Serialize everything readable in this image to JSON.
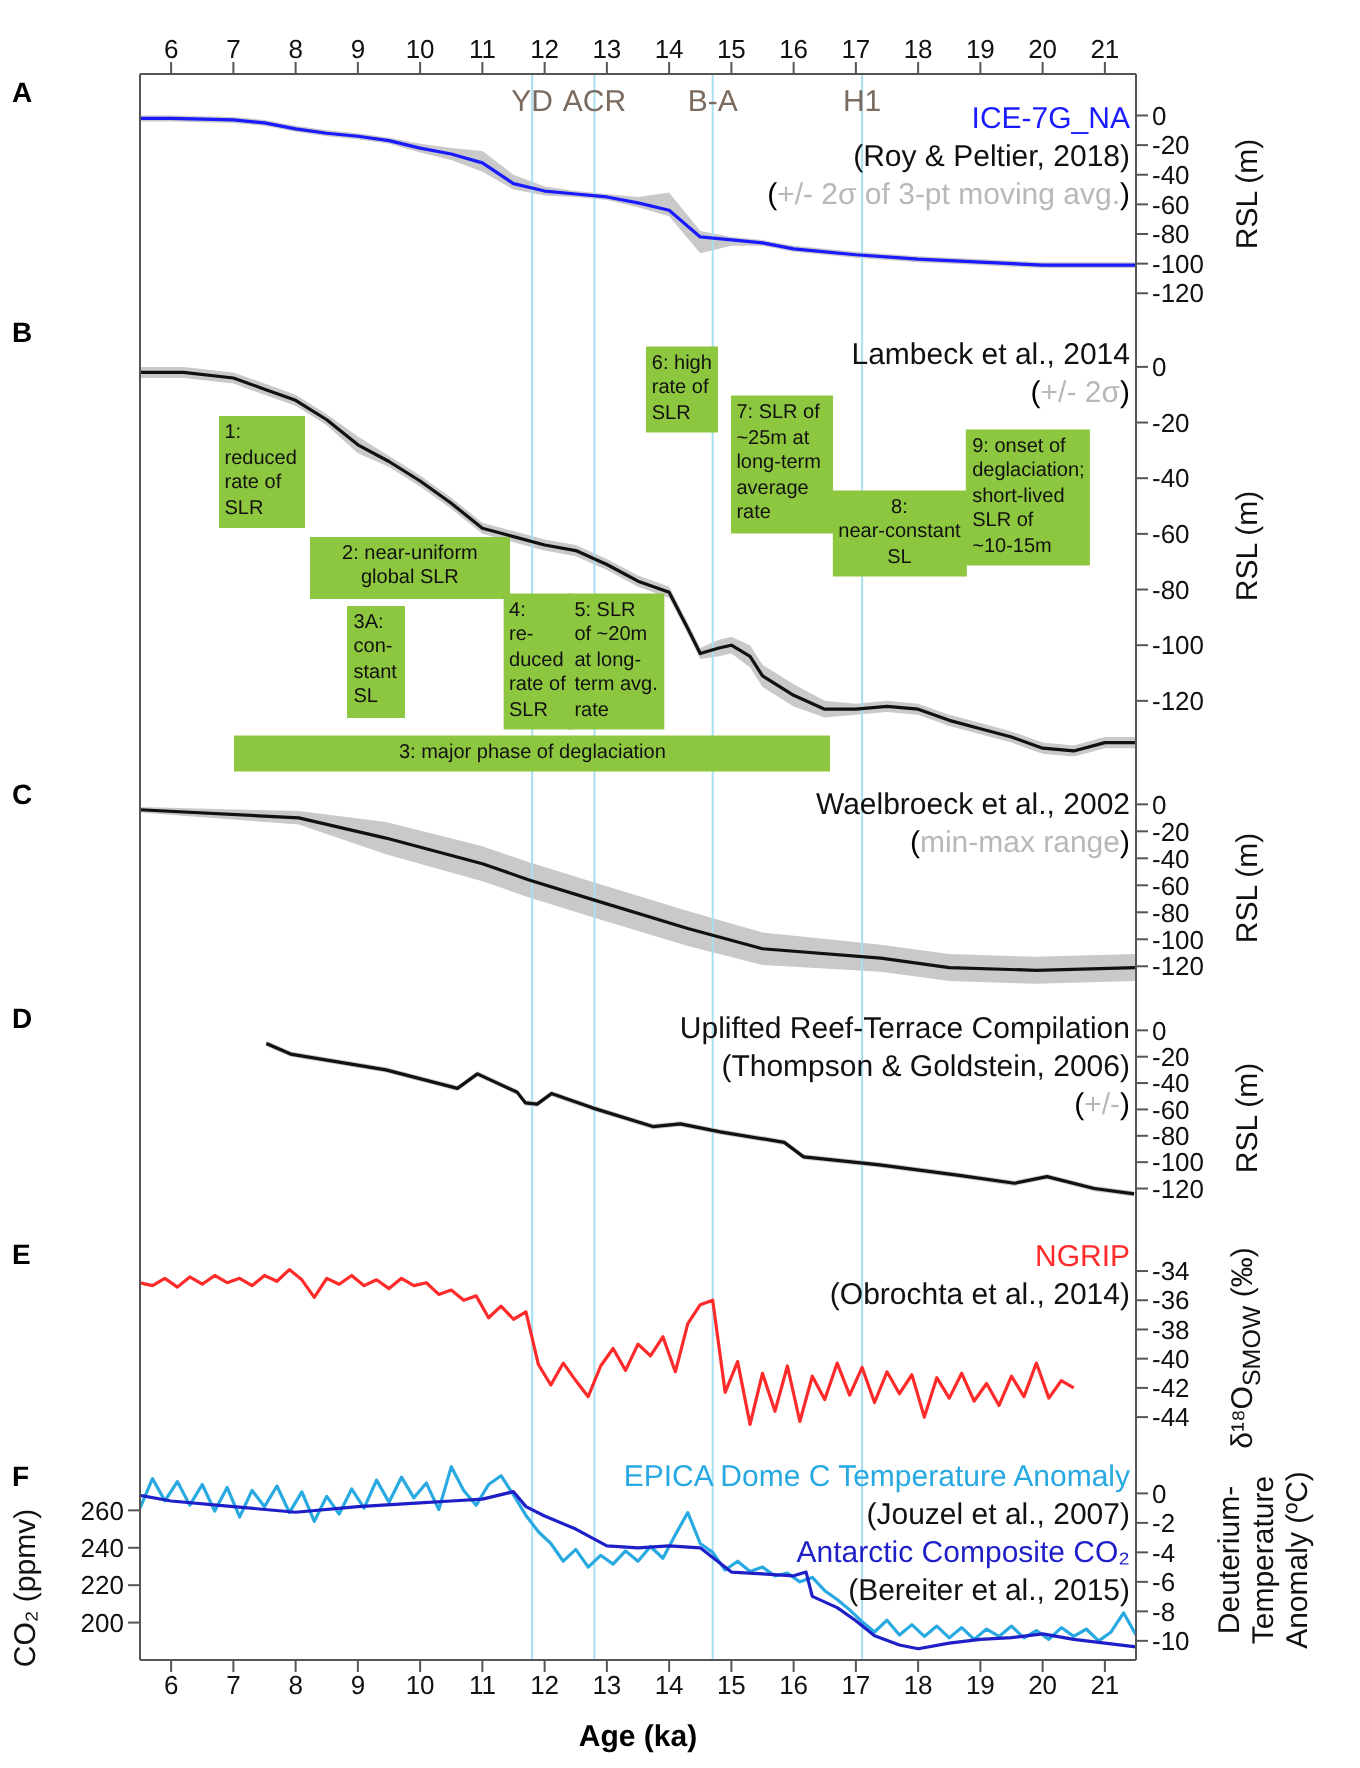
{
  "chart_data": [
    {
      "type": "line",
      "title": "A",
      "ylabel": "RSL (m)",
      "xlim": [
        5.5,
        21.5
      ],
      "x2lim": [
        5.5,
        21.5
      ],
      "x2ticks": [
        6,
        7,
        8,
        9,
        10,
        11,
        12,
        13,
        14,
        15,
        16,
        17,
        18,
        19,
        20,
        21
      ],
      "tick_labels": "y",
      "ylim": [
        -134,
        28
      ],
      "yticks": [
        0,
        -20,
        -40,
        -60,
        -80,
        -100,
        -120
      ],
      "x": [
        5.5,
        6,
        7,
        7.5,
        8,
        8.5,
        9,
        9.5,
        10,
        10.5,
        11,
        11.5,
        12,
        12.5,
        13,
        13.5,
        14,
        14.5,
        15,
        15.5,
        16,
        17,
        18,
        19,
        20,
        21.5
      ],
      "series": [
        {
          "name": "ICE-7G_NA",
          "color": "#1a1aff",
          "values": [
            -2,
            -2,
            -3,
            -5,
            -9,
            -12,
            -14,
            -17,
            -22,
            -26,
            -32,
            -46,
            -51,
            -53,
            -55,
            -59,
            -64,
            -82,
            -84,
            -86,
            -90,
            -94,
            -97,
            -99,
            -101,
            -101
          ],
          "upper": [
            0,
            0,
            -1,
            -3,
            -7,
            -10,
            -12,
            -15,
            -19,
            -22,
            -24,
            -40,
            -48,
            -51,
            -53,
            -55,
            -52,
            -78,
            -82,
            -84,
            -88,
            -92,
            -95,
            -97,
            -99,
            -99
          ],
          "lower": [
            -4,
            -4,
            -5,
            -7,
            -11,
            -14,
            -16,
            -19,
            -25,
            -30,
            -38,
            -50,
            -54,
            -55,
            -57,
            -62,
            -68,
            -93,
            -88,
            -88,
            -92,
            -96,
            -99,
            -101,
            -103,
            -103
          ]
        }
      ],
      "annotations": [
        "(Roy & Peltier, 2018)",
        "(+/- 2σ of 3-pt moving avg.)"
      ],
      "ref_lines": [
        {
          "axis": "x",
          "value": 11.8,
          "label": "YD",
          "color": "#a8dff2"
        },
        {
          "axis": "x",
          "value": 12.8,
          "label": "ACR",
          "color": "#a8dff2"
        },
        {
          "axis": "x",
          "value": 14.7,
          "label": "B-A",
          "color": "#a8dff2"
        },
        {
          "axis": "x",
          "value": 17.1,
          "label": "H1",
          "color": "#a8dff2"
        }
      ]
    },
    {
      "type": "line",
      "title": "B",
      "ylabel": "RSL (m)",
      "xlim": [
        5.5,
        21.5
      ],
      "tick_labels": "y",
      "ylim": [
        -147,
        19
      ],
      "yticks": [
        0,
        -20,
        -40,
        -60,
        -80,
        -100,
        -120
      ],
      "x": [
        5.5,
        6.2,
        7,
        7.5,
        8,
        8.5,
        9,
        9.5,
        10,
        10.5,
        11,
        11.5,
        12,
        12.5,
        13,
        13.5,
        14,
        14.3,
        14.5,
        14.8,
        15,
        15.3,
        15.5,
        16,
        16.5,
        17,
        17.5,
        18,
        18.5,
        19,
        19.5,
        20,
        20.5,
        21,
        21.5
      ],
      "series": [
        {
          "name": "Lambeck et al., 2014",
          "color": "#111111",
          "values": [
            -2,
            -2,
            -4,
            -8,
            -12,
            -19,
            -28,
            -34,
            -41,
            -49,
            -58,
            -61,
            -64,
            -66,
            -71,
            -77,
            -81,
            -94,
            -103,
            -101,
            -100,
            -104,
            -111,
            -118,
            -123,
            -123,
            -122,
            -123,
            -127,
            -130,
            -133,
            -137,
            -138,
            -135,
            -135
          ],
          "upper": [
            0,
            0,
            -2,
            -6,
            -10,
            -17,
            -25,
            -32,
            -39,
            -47,
            -56,
            -59,
            -62,
            -64,
            -69,
            -75,
            -79,
            -92,
            -101,
            -98,
            -97,
            -100,
            -107,
            -114,
            -120,
            -121,
            -120,
            -121,
            -125,
            -128,
            -131,
            -135,
            -136,
            -133,
            -133
          ],
          "lower": [
            -4,
            -4,
            -6,
            -10,
            -14,
            -21,
            -31,
            -36,
            -43,
            -51,
            -60,
            -63,
            -66,
            -68,
            -73,
            -79,
            -83,
            -96,
            -105,
            -104,
            -103,
            -108,
            -115,
            -122,
            -126,
            -125,
            -124,
            -125,
            -129,
            -132,
            -135,
            -139,
            -140,
            -137,
            -137
          ]
        }
      ],
      "annotations": [
        "(+/- 2σ)",
        "1:\nreduced\nrate of\nSLR",
        "2: near-uniform\nglobal SLR",
        "3A:\ncon-\nstant\nSL",
        "3: major phase of deglaciation",
        "4:\nre-\nduced\nrate of\nSLR",
        "5: SLR\nof ~20m\nat long-\nterm avg.\nrate",
        "6: high\nrate of\nSLR",
        "7: SLR of\n~25m at\nlong-term\naverage\nrate",
        "8:\nnear-constant\nSL",
        "9: onset of\ndeglaciation;\nshort-lived\nSLR of\n~10-15m"
      ],
      "ref_lines": [
        {
          "axis": "x",
          "value": 11.8,
          "color": "#a8dff2"
        },
        {
          "axis": "x",
          "value": 12.8,
          "color": "#a8dff2"
        },
        {
          "axis": "x",
          "value": 14.7,
          "color": "#a8dff2"
        },
        {
          "axis": "x",
          "value": 17.1,
          "color": "#a8dff2"
        }
      ]
    },
    {
      "type": "line",
      "title": "C",
      "ylabel": "RSL (m)",
      "xlim": [
        5.5,
        21.5
      ],
      "tick_labels": "y",
      "ylim": [
        -145,
        21
      ],
      "yticks": [
        0,
        -20,
        -40,
        -60,
        -80,
        -100,
        -120
      ],
      "x": [
        5.5,
        8.05,
        9.45,
        11,
        11.75,
        12.8,
        14.3,
        15.5,
        17.4,
        18.5,
        19.9,
        21.5
      ],
      "series": [
        {
          "name": "Waelbroeck et al., 2002",
          "color": "#111111",
          "values": [
            -4,
            -10,
            -25,
            -44,
            -56,
            -71,
            -92,
            -107,
            -114,
            -121,
            -123,
            -121
          ],
          "upper": [
            -2,
            -5,
            -13,
            -31,
            -43,
            -58,
            -79,
            -95,
            -104,
            -111,
            -113,
            -111
          ],
          "lower": [
            -6,
            -15,
            -37,
            -57,
            -69,
            -84,
            -105,
            -119,
            -124,
            -131,
            -133,
            -131
          ]
        }
      ],
      "annotations": [
        "(min-max range)"
      ],
      "ref_lines": [
        {
          "axis": "x",
          "value": 11.8,
          "color": "#a8dff2"
        },
        {
          "axis": "x",
          "value": 12.8,
          "color": "#a8dff2"
        },
        {
          "axis": "x",
          "value": 14.7,
          "color": "#a8dff2"
        },
        {
          "axis": "x",
          "value": 17.1,
          "color": "#a8dff2"
        }
      ]
    },
    {
      "type": "line",
      "title": "D",
      "ylabel": "RSL (m)",
      "xlim": [
        5.5,
        21.5
      ],
      "tick_labels": "y",
      "ylim": [
        -156,
        23
      ],
      "yticks": [
        0,
        -20,
        -40,
        -60,
        -80,
        -100,
        -120
      ],
      "x": [
        7.53,
        7.92,
        9.45,
        10.6,
        10.92,
        11.56,
        11.69,
        11.88,
        12.11,
        12.78,
        13.74,
        14.18,
        14.82,
        15.85,
        16.16,
        17.38,
        18.66,
        19.55,
        20.07,
        20.83,
        21.47
      ],
      "series": [
        {
          "name": "Uplifted Reef-Terrace Compilation",
          "color": "#111111",
          "values": [
            -10,
            -18,
            -30,
            -44,
            -33,
            -47,
            -55,
            -56,
            -48,
            -59,
            -73,
            -71,
            -77,
            -85,
            -96,
            -102,
            -110,
            -116,
            -111,
            -120,
            -124
          ],
          "upper": [
            -8,
            -16,
            -28,
            -42,
            -31,
            -45,
            -53,
            -54,
            -46,
            -57,
            -71,
            -69,
            -75,
            -83,
            -94,
            -100,
            -108,
            -114,
            -109,
            -118,
            -122
          ],
          "lower": [
            -12,
            -20,
            -32,
            -46,
            -35,
            -49,
            -57,
            -58,
            -50,
            -61,
            -75,
            -73,
            -79,
            -87,
            -98,
            -104,
            -112,
            -118,
            -113,
            -122,
            -126
          ]
        }
      ],
      "annotations": [
        "(Thompson & Goldstein, 2006)",
        "(+/-)"
      ],
      "ref_lines": [
        {
          "axis": "x",
          "value": 11.8,
          "color": "#a8dff2"
        },
        {
          "axis": "x",
          "value": 12.8,
          "color": "#a8dff2"
        },
        {
          "axis": "x",
          "value": 14.7,
          "color": "#a8dff2"
        },
        {
          "axis": "x",
          "value": 17.1,
          "color": "#a8dff2"
        }
      ]
    },
    {
      "type": "line",
      "title": "E",
      "ylabel": "δ¹⁸O$_{SMOW}$ (‰)",
      "xlim": [
        5.5,
        21.5
      ],
      "tick_labels": "y",
      "ylim": [
        -46.8,
        -31.6
      ],
      "yticks": [
        -44,
        -42,
        -40,
        -38,
        -36,
        -34
      ],
      "x": [
        5.5,
        5.7,
        5.9,
        6.1,
        6.3,
        6.5,
        6.7,
        6.9,
        7.1,
        7.3,
        7.5,
        7.7,
        7.9,
        8.1,
        8.3,
        8.5,
        8.7,
        8.9,
        9.1,
        9.3,
        9.5,
        9.7,
        9.9,
        10.1,
        10.3,
        10.5,
        10.7,
        10.9,
        11.1,
        11.3,
        11.5,
        11.7,
        11.9,
        12.1,
        12.3,
        12.5,
        12.7,
        12.9,
        13.1,
        13.3,
        13.5,
        13.7,
        13.9,
        14.1,
        14.3,
        14.5,
        14.7,
        14.9,
        15.1,
        15.3,
        15.5,
        15.7,
        15.9,
        16.1,
        16.3,
        16.5,
        16.7,
        16.9,
        17.1,
        17.3,
        17.5,
        17.7,
        17.9,
        18.1,
        18.3,
        18.5,
        18.7,
        18.9,
        19.1,
        19.3,
        19.5,
        19.7,
        19.9,
        20.1,
        20.3,
        20.5
      ],
      "series": [
        {
          "name": "NGRIP",
          "color": "#ff2a2a",
          "values": [
            -34.8,
            -35.0,
            -34.5,
            -35.1,
            -34.4,
            -34.9,
            -34.3,
            -34.8,
            -34.5,
            -35.0,
            -34.3,
            -34.7,
            -33.9,
            -34.6,
            -35.8,
            -34.5,
            -34.9,
            -34.3,
            -35.0,
            -34.6,
            -35.2,
            -34.5,
            -35.0,
            -34.8,
            -35.6,
            -35.3,
            -36.0,
            -35.7,
            -37.2,
            -36.4,
            -37.3,
            -36.8,
            -40.4,
            -41.8,
            -40.3,
            -41.5,
            -42.6,
            -40.5,
            -39.3,
            -40.8,
            -39.0,
            -39.8,
            -38.5,
            -40.9,
            -37.6,
            -36.3,
            -36.0,
            -42.3,
            -40.2,
            -44.5,
            -41.0,
            -43.6,
            -40.5,
            -44.3,
            -41.2,
            -42.8,
            -40.3,
            -42.5,
            -40.6,
            -43.0,
            -40.9,
            -42.4,
            -41.1,
            -44.0,
            -41.3,
            -42.7,
            -41.0,
            -42.9,
            -41.7,
            -43.2,
            -41.2,
            -42.6,
            -40.3,
            -42.7,
            -41.5,
            -42.0
          ]
        }
      ],
      "annotations": [
        "(Obrochta et al., 2014)"
      ],
      "ref_lines": [
        {
          "axis": "x",
          "value": 11.8,
          "color": "#a8dff2"
        },
        {
          "axis": "x",
          "value": 12.8,
          "color": "#a8dff2"
        },
        {
          "axis": "x",
          "value": 14.7,
          "color": "#a8dff2"
        },
        {
          "axis": "x",
          "value": 17.1,
          "color": "#a8dff2"
        }
      ]
    },
    {
      "type": "line",
      "title": "F",
      "xlabel": "Age (ka)",
      "ylabel": "CO₂ (ppmv)",
      "y2label": "Deuterium-Temperature Anomaly (ºC)",
      "xlim": [
        5.5,
        21.5
      ],
      "xticks": [
        6,
        7,
        8,
        9,
        10,
        11,
        12,
        13,
        14,
        15,
        16,
        17,
        18,
        19,
        20,
        21
      ],
      "ylim": [
        180,
        288
      ],
      "yticks": [
        200,
        220,
        240,
        260
      ],
      "y2lim": [
        -11.3,
        2.4
      ],
      "y2ticks": [
        0,
        -2,
        -4,
        -6,
        -8,
        -10
      ],
      "series": [
        {
          "name": "EPICA Dome C Temperature Anomaly",
          "color": "#29a9e1",
          "axis": "y2",
          "x": [
            5.5,
            5.7,
            5.9,
            6.1,
            6.3,
            6.5,
            6.7,
            6.9,
            7.1,
            7.3,
            7.5,
            7.7,
            7.9,
            8.1,
            8.3,
            8.5,
            8.7,
            8.9,
            9.1,
            9.3,
            9.5,
            9.7,
            9.9,
            10.1,
            10.3,
            10.5,
            10.7,
            10.9,
            11.1,
            11.3,
            11.5,
            11.7,
            11.9,
            12.1,
            12.3,
            12.5,
            12.7,
            12.9,
            13.1,
            13.3,
            13.5,
            13.7,
            13.9,
            14.1,
            14.3,
            14.5,
            14.7,
            14.9,
            15.1,
            15.3,
            15.5,
            15.7,
            15.9,
            16.1,
            16.3,
            16.5,
            16.7,
            16.9,
            17.1,
            17.3,
            17.5,
            17.7,
            17.9,
            18.1,
            18.3,
            18.5,
            18.7,
            18.9,
            19.1,
            19.3,
            19.5,
            19.7,
            19.9,
            20.1,
            20.3,
            20.5,
            20.7,
            20.9,
            21.1,
            21.3,
            21.5
          ],
          "values": [
            -1.0,
            1.0,
            -0.5,
            0.8,
            -0.8,
            0.6,
            -1.2,
            0.4,
            -1.6,
            0.2,
            -0.9,
            0.5,
            -1.3,
            0.1,
            -1.9,
            -0.2,
            -1.4,
            0.3,
            -1.0,
            0.9,
            -0.6,
            1.1,
            -0.3,
            0.7,
            -1.1,
            1.8,
            0.2,
            -0.8,
            0.6,
            1.2,
            -0.1,
            -1.5,
            -2.6,
            -3.4,
            -4.6,
            -3.8,
            -5.0,
            -4.2,
            -4.8,
            -3.9,
            -4.6,
            -3.6,
            -4.4,
            -2.8,
            -1.3,
            -3.4,
            -4.0,
            -5.2,
            -4.6,
            -5.3,
            -5.0,
            -5.6,
            -5.4,
            -6.0,
            -5.7,
            -6.6,
            -7.2,
            -7.9,
            -8.7,
            -9.4,
            -8.6,
            -9.6,
            -8.9,
            -9.7,
            -9.0,
            -9.8,
            -9.1,
            -9.9,
            -9.2,
            -9.7,
            -9.0,
            -9.8,
            -9.3,
            -9.9,
            -9.1,
            -9.7,
            -9.2,
            -10.0,
            -9.4,
            -8.1,
            -9.6
          ]
        },
        {
          "name": "Antarctic Composite CO₂",
          "color": "#1f1fc8",
          "x": [
            5.5,
            6,
            7,
            8,
            9,
            10,
            10.5,
            11,
            11.5,
            11.7,
            12,
            12.5,
            13,
            13.5,
            14,
            14.5,
            15,
            15.5,
            16,
            16.2,
            16.3,
            16.7,
            17,
            17.3,
            17.7,
            18,
            18.5,
            19,
            19.5,
            20,
            20.5,
            21,
            21.5
          ],
          "values": [
            268,
            265,
            262,
            259,
            262,
            264,
            265,
            266,
            270,
            262,
            257,
            250,
            241,
            240,
            241,
            240,
            227,
            226,
            225,
            227,
            214,
            208,
            201,
            193,
            188,
            186,
            189,
            191,
            192,
            194,
            191,
            189,
            187
          ]
        }
      ],
      "annotations": [
        "(Jouzel et al., 2007)",
        "(Bereiter et al., 2015)"
      ],
      "ref_lines": [
        {
          "axis": "x",
          "value": 11.8,
          "color": "#a8dff2"
        },
        {
          "axis": "x",
          "value": 12.8,
          "color": "#a8dff2"
        },
        {
          "axis": "x",
          "value": 14.7,
          "color": "#a8dff2"
        },
        {
          "axis": "x",
          "value": 17.1,
          "color": "#a8dff2"
        }
      ]
    }
  ]
}
